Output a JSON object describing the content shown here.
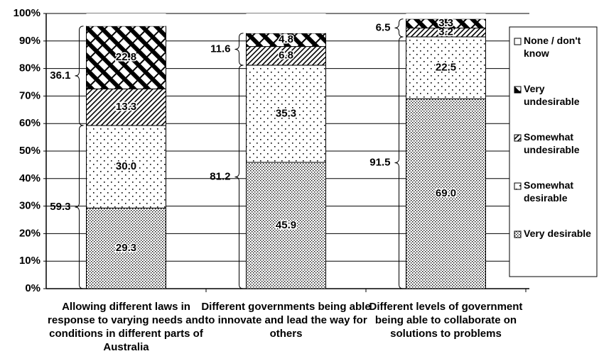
{
  "chart_data": {
    "type": "stacked-bar",
    "categories": [
      "Allowing different laws in response to varying needs and conditions in different parts of Australia",
      "Different governments being able to innovate and lead the way for others",
      "Different levels of government being able to collaborate on solutions to problems"
    ],
    "series": [
      {
        "name": "Very desirable",
        "pattern": "dense-dots",
        "values": [
          29.3,
          45.9,
          69.0
        ],
        "value_labels": [
          "29.3",
          "45.9",
          "69.0"
        ]
      },
      {
        "name": "Somewhat desirable",
        "pattern": "sparse-dots",
        "values": [
          30.0,
          35.3,
          22.5
        ],
        "value_labels": [
          "30.0",
          "35.3",
          "22.5"
        ]
      },
      {
        "name": "Somewhat undesirable",
        "pattern": "fine-hatch",
        "values": [
          13.3,
          6.8,
          3.2
        ],
        "value_labels": [
          "13.3",
          "6.8",
          "3.2"
        ]
      },
      {
        "name": "Very undesirable",
        "pattern": "bold-stripes",
        "values": [
          22.8,
          4.8,
          3.3
        ],
        "value_labels": [
          "22.8",
          "4.8",
          "3.3"
        ]
      },
      {
        "name": "None / don't know",
        "pattern": "blank",
        "values": [
          4.6,
          7.2,
          2.0
        ]
      }
    ],
    "annotations": [
      [
        59.3,
        36.1
      ],
      [
        81.2,
        11.6
      ],
      [
        91.5,
        6.5
      ]
    ],
    "ylim": [
      0,
      100
    ],
    "yticks": [
      {
        "value": 0,
        "label": "0%"
      },
      {
        "value": 10,
        "label": "10%"
      },
      {
        "value": 20,
        "label": "20%"
      },
      {
        "value": 30,
        "label": "30%"
      },
      {
        "value": 40,
        "label": "40%"
      },
      {
        "value": 50,
        "label": "50%"
      },
      {
        "value": 60,
        "label": "60%"
      },
      {
        "value": 70,
        "label": "70%"
      },
      {
        "value": 80,
        "label": "80%"
      },
      {
        "value": 90,
        "label": "90%"
      },
      {
        "value": 100,
        "label": "100%"
      }
    ],
    "grid": true,
    "legend": "right"
  }
}
